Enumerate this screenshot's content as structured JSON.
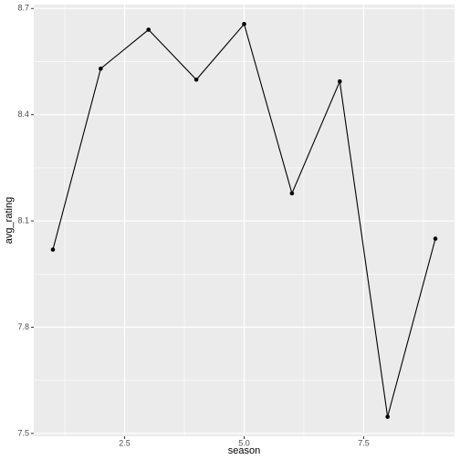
{
  "chart_data": {
    "type": "line",
    "x_label": "season",
    "y_label": "avg_rating",
    "x": [
      1,
      2,
      3,
      4,
      5,
      6,
      7,
      8,
      9
    ],
    "series": [
      {
        "color": "#000000",
        "values": [
          8.019,
          8.53,
          8.64,
          8.499,
          8.656,
          8.178,
          8.494,
          7.547,
          8.05
        ]
      }
    ],
    "xlim": [
      0.6,
      9.4
    ],
    "ylim": [
      7.492,
      8.711
    ],
    "xticks": [
      2.5,
      {
        "value": 5,
        "label": "5.0"
      },
      7.5
    ],
    "yticks": [
      7.5,
      7.8,
      8.1,
      8.4,
      8.7
    ],
    "grid": true,
    "markers": true
  }
}
